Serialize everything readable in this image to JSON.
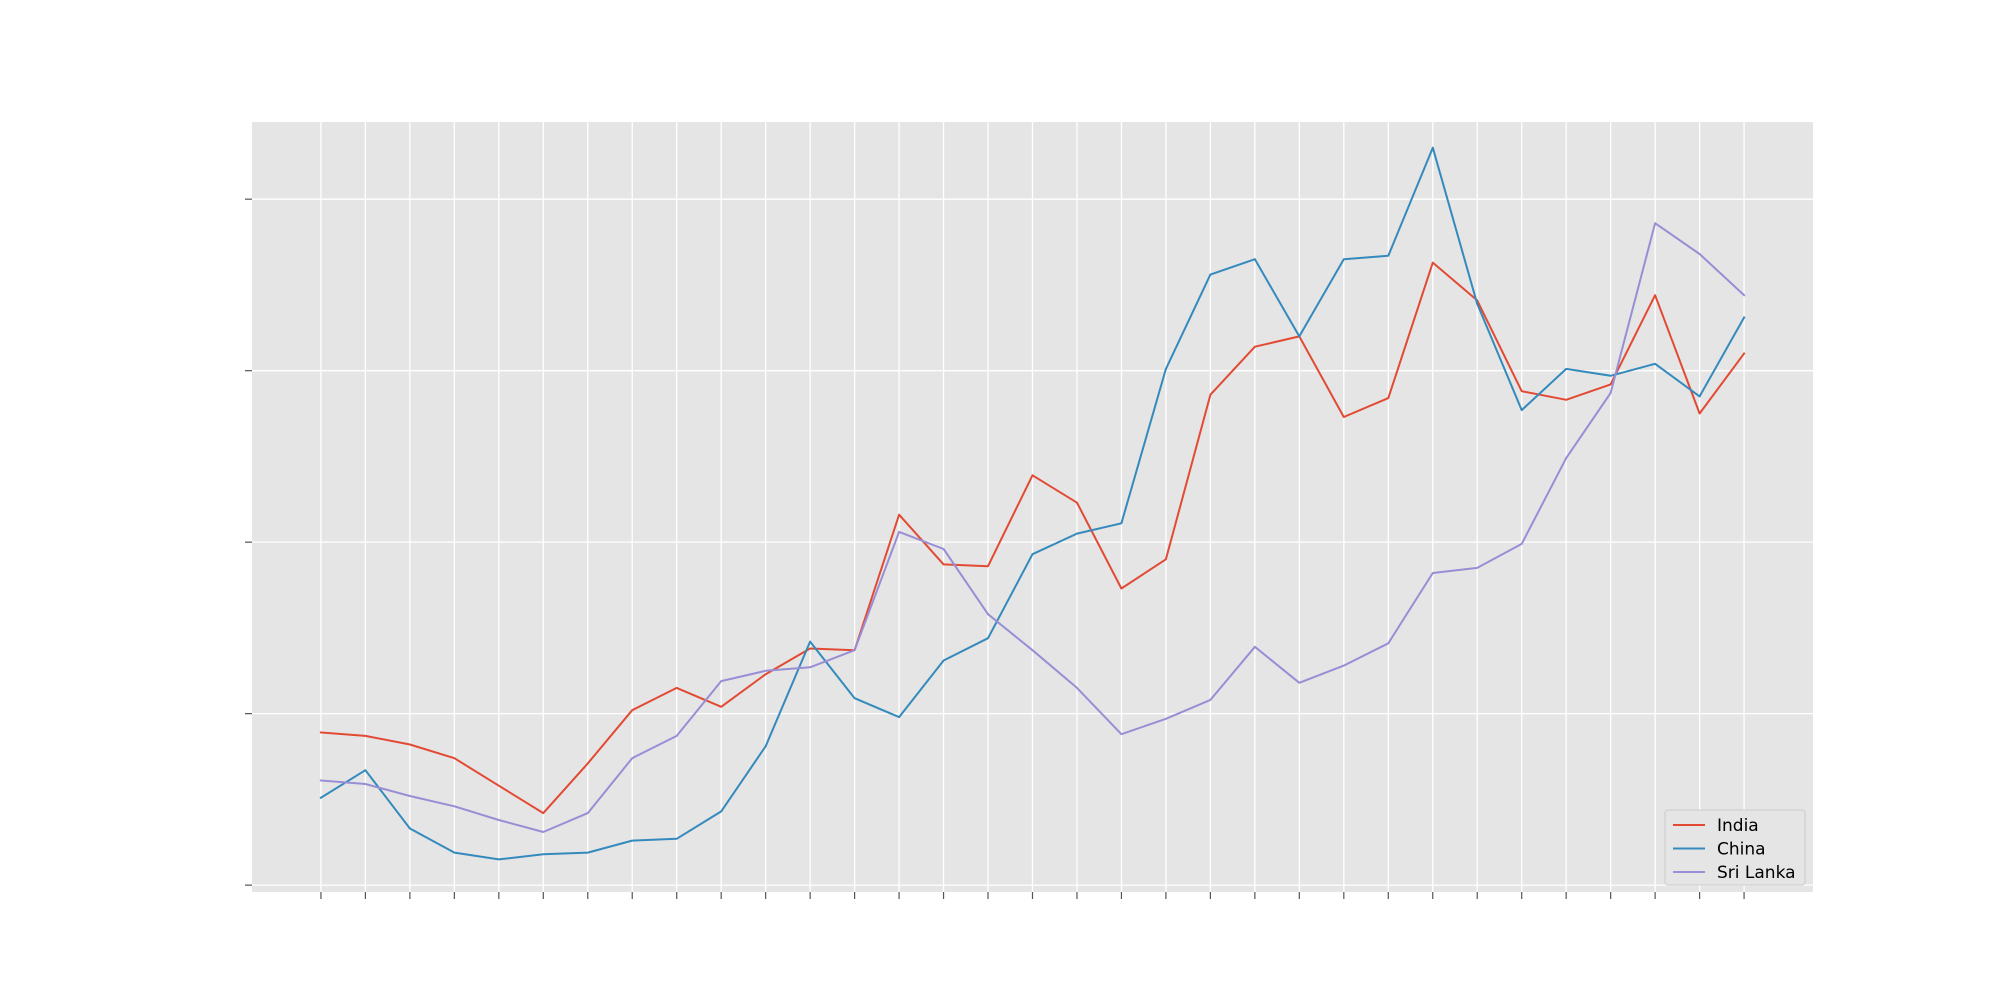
{
  "chart_data": {
    "type": "line",
    "title": "",
    "xlabel": "",
    "ylabel": "",
    "x": [
      1,
      2,
      3,
      4,
      5,
      6,
      7,
      8,
      9,
      10,
      11,
      12,
      13,
      14,
      15,
      16,
      17,
      18,
      19,
      20,
      21,
      22,
      23,
      24,
      25,
      26,
      27,
      28,
      29,
      30,
      31,
      32,
      33
    ],
    "xlim": [
      -0.55,
      34.55
    ],
    "ylim": [
      -0.04,
      4.45
    ],
    "yticks": [
      0,
      1,
      2,
      3,
      4
    ],
    "show_tick_labels": false,
    "grid": true,
    "legend_position": "bottom-right",
    "series": [
      {
        "name": "India",
        "color": "#e24a33",
        "values": [
          0.89,
          0.87,
          0.82,
          0.74,
          0.58,
          0.42,
          0.71,
          1.02,
          1.15,
          1.04,
          1.23,
          1.38,
          1.37,
          2.16,
          1.87,
          1.86,
          2.39,
          2.23,
          1.73,
          1.9,
          2.86,
          3.14,
          3.2,
          2.73,
          2.84,
          3.63,
          3.41,
          2.88,
          2.83,
          2.92,
          3.44,
          2.75,
          3.1
        ]
      },
      {
        "name": "China",
        "color": "#348abd",
        "values": [
          0.51,
          0.67,
          0.33,
          0.19,
          0.15,
          0.18,
          0.19,
          0.26,
          0.27,
          0.43,
          0.81,
          1.42,
          1.09,
          0.98,
          1.31,
          1.44,
          1.93,
          2.05,
          2.11,
          3.01,
          3.56,
          3.65,
          3.2,
          3.65,
          3.67,
          4.3,
          3.39,
          2.77,
          3.01,
          2.97,
          3.04,
          2.85,
          3.31
        ]
      },
      {
        "name": "Sri Lanka",
        "color": "#988ed5",
        "values": [
          0.61,
          0.59,
          0.52,
          0.46,
          0.38,
          0.31,
          0.42,
          0.74,
          0.87,
          1.19,
          1.25,
          1.27,
          1.37,
          2.06,
          1.96,
          1.58,
          1.37,
          1.15,
          0.88,
          0.97,
          1.08,
          1.39,
          1.18,
          1.28,
          1.41,
          1.82,
          1.85,
          1.99,
          2.49,
          2.87,
          3.86,
          3.68,
          3.44
        ]
      }
    ]
  }
}
